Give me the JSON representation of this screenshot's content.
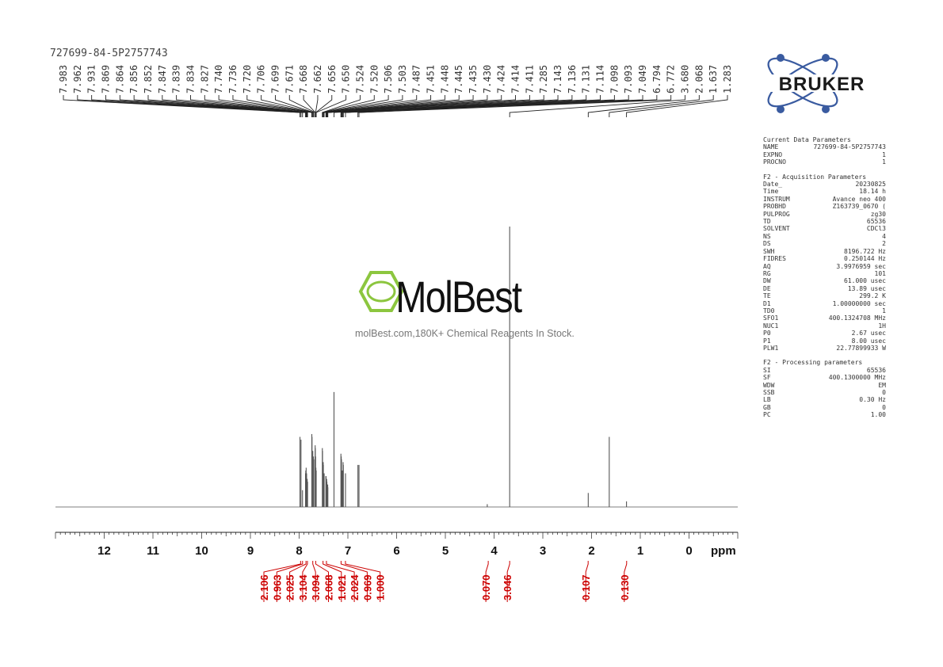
{
  "title": "727699-84-5P2757743",
  "logos": {
    "bruker_text": "BRUKER",
    "molbest_text": "MolBest",
    "molbest_tagline": "molBest.com,180K+ Chemical Reagents In Stock.",
    "molbest_color": "#8cc63f",
    "bruker_color": "#3a5ba0"
  },
  "parameters": {
    "current_title": "Current Data Parameters",
    "current": [
      {
        "k": "NAME",
        "v": "727699-84-5P2757743"
      },
      {
        "k": "EXPNO",
        "v": "1"
      },
      {
        "k": "PROCNO",
        "v": "1"
      }
    ],
    "acq_title": "F2 - Acquisition Parameters",
    "acq": [
      {
        "k": "Date_",
        "v": "20230825"
      },
      {
        "k": "Time",
        "v": "18.14 h"
      },
      {
        "k": "INSTRUM",
        "v": "Avance neo 400"
      },
      {
        "k": "PROBHD",
        "v": "Z163739_0670 ("
      },
      {
        "k": "PULPROG",
        "v": "zg30"
      },
      {
        "k": "TD",
        "v": "65536"
      },
      {
        "k": "SOLVENT",
        "v": "CDCl3"
      },
      {
        "k": "NS",
        "v": "4"
      },
      {
        "k": "DS",
        "v": "2"
      },
      {
        "k": "SWH",
        "v": "8196.722 Hz"
      },
      {
        "k": "FIDRES",
        "v": "0.250144 Hz"
      },
      {
        "k": "AQ",
        "v": "3.9976959 sec"
      },
      {
        "k": "RG",
        "v": "101"
      },
      {
        "k": "DW",
        "v": "61.000 usec"
      },
      {
        "k": "DE",
        "v": "13.89 usec"
      },
      {
        "k": "TE",
        "v": "299.2 K"
      },
      {
        "k": "D1",
        "v": "1.00000000 sec"
      },
      {
        "k": "TD0",
        "v": "1"
      },
      {
        "k": "SFO1",
        "v": "400.1324708 MHz"
      },
      {
        "k": "NUC1",
        "v": "1H"
      },
      {
        "k": "P0",
        "v": "2.67 usec"
      },
      {
        "k": "P1",
        "v": "8.00 usec"
      },
      {
        "k": "PLW1",
        "v": "22.77899933 W"
      }
    ],
    "proc_title": "F2 - Processing parameters",
    "proc": [
      {
        "k": "SI",
        "v": "65536"
      },
      {
        "k": "SF",
        "v": "400.1300000 MHz"
      },
      {
        "k": "WDW",
        "v": "EM"
      },
      {
        "k": "SSB",
        "v": "0"
      },
      {
        "k": "LB",
        "v": "0.30 Hz"
      },
      {
        "k": "GB",
        "v": "0"
      },
      {
        "k": "PC",
        "v": "1.00"
      }
    ]
  },
  "chart_data": {
    "type": "line",
    "xlabel": "ppm",
    "xlim": [
      13.0,
      -1.0
    ],
    "x_ticks": [
      "12",
      "11",
      "10",
      "9",
      "8",
      "7",
      "6",
      "5",
      "4",
      "3",
      "2",
      "1",
      "0"
    ],
    "x_tick_values": [
      12,
      11,
      10,
      9,
      8,
      7,
      6,
      5,
      4,
      3,
      2,
      1,
      0
    ],
    "peak_labels": [
      "7.983",
      "7.962",
      "7.931",
      "7.869",
      "7.864",
      "7.856",
      "7.852",
      "7.847",
      "7.839",
      "7.834",
      "7.827",
      "7.740",
      "7.736",
      "7.720",
      "7.706",
      "7.699",
      "7.671",
      "7.668",
      "7.662",
      "7.656",
      "7.650",
      "7.524",
      "7.520",
      "7.506",
      "7.503",
      "7.487",
      "7.451",
      "7.448",
      "7.445",
      "7.435",
      "7.430",
      "7.424",
      "7.414",
      "7.411",
      "7.285",
      "7.143",
      "7.136",
      "7.131",
      "7.114",
      "7.098",
      "7.093",
      "7.049",
      "6.794",
      "6.772",
      "3.680",
      "2.068",
      "1.637",
      "1.283"
    ],
    "peaks": [
      {
        "ppm": 7.983,
        "h": 0.25
      },
      {
        "ppm": 7.962,
        "h": 0.24
      },
      {
        "ppm": 7.931,
        "h": 0.06
      },
      {
        "ppm": 7.869,
        "h": 0.12
      },
      {
        "ppm": 7.864,
        "h": 0.13
      },
      {
        "ppm": 7.856,
        "h": 0.14
      },
      {
        "ppm": 7.852,
        "h": 0.12
      },
      {
        "ppm": 7.847,
        "h": 0.12
      },
      {
        "ppm": 7.839,
        "h": 0.1
      },
      {
        "ppm": 7.834,
        "h": 0.1
      },
      {
        "ppm": 7.827,
        "h": 0.09
      },
      {
        "ppm": 7.74,
        "h": 0.26
      },
      {
        "ppm": 7.736,
        "h": 0.25
      },
      {
        "ppm": 7.72,
        "h": 0.2
      },
      {
        "ppm": 7.706,
        "h": 0.18
      },
      {
        "ppm": 7.699,
        "h": 0.17
      },
      {
        "ppm": 7.671,
        "h": 0.22
      },
      {
        "ppm": 7.668,
        "h": 0.21
      },
      {
        "ppm": 7.662,
        "h": 0.18
      },
      {
        "ppm": 7.656,
        "h": 0.14
      },
      {
        "ppm": 7.65,
        "h": 0.13
      },
      {
        "ppm": 7.524,
        "h": 0.21
      },
      {
        "ppm": 7.52,
        "h": 0.2
      },
      {
        "ppm": 7.506,
        "h": 0.16
      },
      {
        "ppm": 7.503,
        "h": 0.15
      },
      {
        "ppm": 7.487,
        "h": 0.12
      },
      {
        "ppm": 7.451,
        "h": 0.11
      },
      {
        "ppm": 7.448,
        "h": 0.11
      },
      {
        "ppm": 7.445,
        "h": 0.1
      },
      {
        "ppm": 7.435,
        "h": 0.1
      },
      {
        "ppm": 7.43,
        "h": 0.09
      },
      {
        "ppm": 7.424,
        "h": 0.08
      },
      {
        "ppm": 7.414,
        "h": 0.08
      },
      {
        "ppm": 7.411,
        "h": 0.07
      },
      {
        "ppm": 7.285,
        "h": 0.41
      },
      {
        "ppm": 7.143,
        "h": 0.19
      },
      {
        "ppm": 7.136,
        "h": 0.18
      },
      {
        "ppm": 7.131,
        "h": 0.17
      },
      {
        "ppm": 7.114,
        "h": 0.13
      },
      {
        "ppm": 7.098,
        "h": 0.16
      },
      {
        "ppm": 7.093,
        "h": 0.15
      },
      {
        "ppm": 7.049,
        "h": 0.12
      },
      {
        "ppm": 6.794,
        "h": 0.15
      },
      {
        "ppm": 6.772,
        "h": 0.15
      },
      {
        "ppm": 4.14,
        "h": 0.01
      },
      {
        "ppm": 3.68,
        "h": 1.0
      },
      {
        "ppm": 2.068,
        "h": 0.05
      },
      {
        "ppm": 1.637,
        "h": 0.25
      },
      {
        "ppm": 1.283,
        "h": 0.02
      }
    ],
    "integrals": [
      {
        "value": "2.106",
        "ppm": 7.97
      },
      {
        "value": "0.963",
        "ppm": 7.93
      },
      {
        "value": "2.025",
        "ppm": 7.86
      },
      {
        "value": "3.104",
        "ppm": 7.83
      },
      {
        "value": "3.094",
        "ppm": 7.72
      },
      {
        "value": "2.068",
        "ppm": 7.66
      },
      {
        "value": "1.021",
        "ppm": 7.51
      },
      {
        "value": "2.024",
        "ppm": 7.44
      },
      {
        "value": "0.969",
        "ppm": 7.14
      },
      {
        "value": "1.000",
        "ppm": 7.05
      },
      {
        "value": "0.070",
        "ppm": 4.12
      },
      {
        "value": "3.046",
        "ppm": 3.68
      },
      {
        "value": "0.107",
        "ppm": 2.07
      },
      {
        "value": "0.130",
        "ppm": 1.28
      }
    ],
    "line_color": "#555555",
    "integral_color": "#cc0000"
  }
}
